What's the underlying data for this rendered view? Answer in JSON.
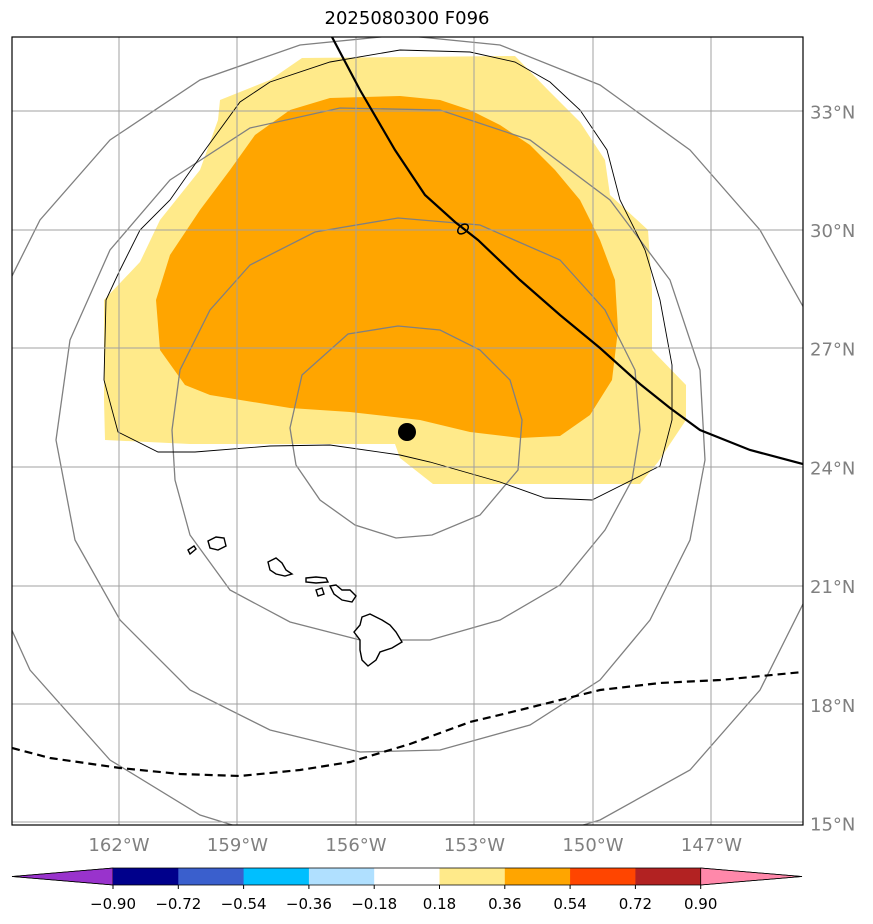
{
  "title": "2025080300 F096",
  "map": {
    "lon_range": [
      -164.5,
      -144.5
    ],
    "lat_range": [
      14.9,
      34.7
    ],
    "lon_ticks": [
      {
        "value": -162,
        "label": "162°W"
      },
      {
        "value": -159,
        "label": "159°W"
      },
      {
        "value": -156,
        "label": "156°W"
      },
      {
        "value": -153,
        "label": "153°W"
      },
      {
        "value": -150,
        "label": "150°W"
      },
      {
        "value": -147,
        "label": "147°W"
      }
    ],
    "lat_ticks": [
      {
        "value": 33,
        "label": "33°N"
      },
      {
        "value": 30,
        "label": "30°N"
      },
      {
        "value": 27,
        "label": "27°N"
      },
      {
        "value": 24,
        "label": "24°N"
      },
      {
        "value": 21,
        "label": "21°N"
      },
      {
        "value": 18,
        "label": "18°N"
      },
      {
        "value": 15,
        "label": "15°N"
      }
    ],
    "center_point": {
      "lon": -154.8,
      "lat": 24.9
    },
    "shading_colors": {
      "0.18-0.36": "#ffea8a",
      "0.36-0.54": "#ffa500"
    }
  },
  "colorbar": {
    "labels": [
      "−0.90",
      "−0.72",
      "−0.54",
      "−0.36",
      "−0.18",
      "0.18",
      "0.36",
      "0.54",
      "0.72",
      "0.90"
    ],
    "colors": [
      "#9933cc",
      "#00008b",
      "#3a5fcd",
      "#00bfff",
      "#b0e0ff",
      "#ffffff",
      "#ffea8a",
      "#ffa500",
      "#ff4500",
      "#b22222",
      "#ff88aa"
    ]
  }
}
